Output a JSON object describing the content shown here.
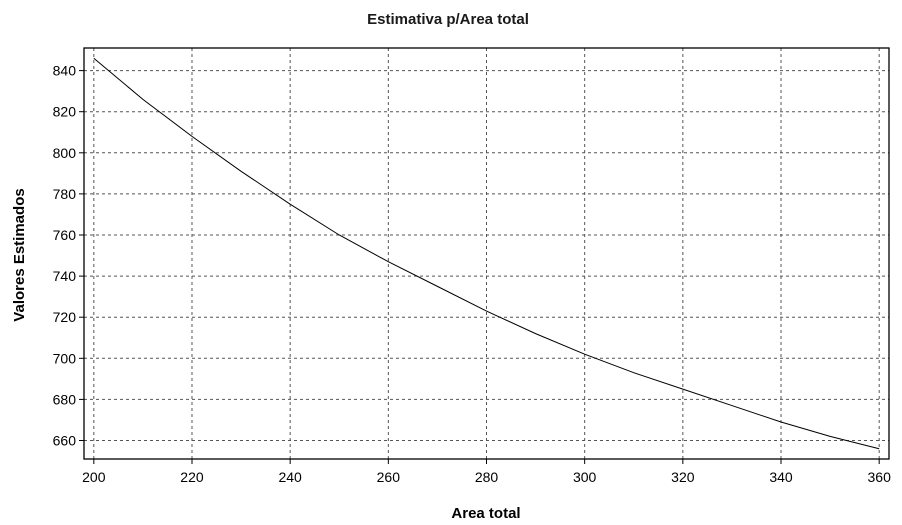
{
  "chart_data": {
    "type": "line",
    "title": "Estimativa p/Area total",
    "xlabel": "Area total",
    "ylabel": "Valores Estimados",
    "xlim": [
      198,
      362
    ],
    "ylim": [
      651,
      851
    ],
    "x_ticks": [
      200,
      220,
      240,
      260,
      280,
      300,
      320,
      340,
      360
    ],
    "y_ticks": [
      660,
      680,
      700,
      720,
      740,
      760,
      780,
      800,
      820,
      840
    ],
    "grid": true,
    "legend": "none",
    "series": [
      {
        "color": "#000000",
        "x": [
          200,
          210,
          220,
          230,
          240,
          250,
          260,
          270,
          280,
          290,
          300,
          310,
          320,
          330,
          340,
          350,
          360
        ],
        "y": [
          846,
          826,
          808,
          791,
          775,
          760,
          747,
          735,
          723,
          712,
          702,
          693,
          685,
          677,
          669,
          662,
          656
        ]
      }
    ]
  }
}
